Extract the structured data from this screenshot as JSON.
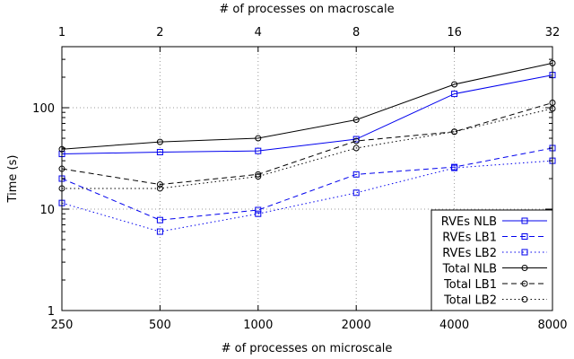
{
  "chart_data": {
    "type": "line",
    "xlabel": "# of processes on microscale",
    "x2label": "# of processes on macroscale",
    "ylabel": "Time (s)",
    "x_ticks": [
      "250",
      "500",
      "1000",
      "2000",
      "4000",
      "8000"
    ],
    "x2_ticks": [
      "1",
      "2",
      "4",
      "8",
      "16",
      "32"
    ],
    "y_scale": "log",
    "ylim": [
      1,
      400
    ],
    "y_ticks": [
      "1",
      "10",
      "100"
    ],
    "grid": true,
    "legend_position": "bottom-right",
    "series": [
      {
        "name": "RVEs NLB",
        "color": "#0000ee",
        "marker": "square",
        "dash": "solid",
        "values": [
          35,
          36.5,
          37.5,
          49,
          137,
          210
        ]
      },
      {
        "name": "RVEs LB1",
        "color": "#0000ee",
        "marker": "square",
        "dash": "dashed",
        "values": [
          20,
          7.8,
          9.8,
          22,
          26,
          40
        ]
      },
      {
        "name": "RVEs LB2",
        "color": "#0000ee",
        "marker": "square",
        "dash": "dotted",
        "values": [
          11.5,
          6,
          9,
          14.5,
          25.5,
          30
        ]
      },
      {
        "name": "Total NLB",
        "color": "#000000",
        "marker": "circle",
        "dash": "solid",
        "values": [
          39,
          46,
          50,
          76,
          170,
          275
        ]
      },
      {
        "name": "Total LB1",
        "color": "#000000",
        "marker": "circle",
        "dash": "dashed",
        "values": [
          25,
          17.5,
          22,
          47,
          58,
          112
        ]
      },
      {
        "name": "Total LB2",
        "color": "#000000",
        "marker": "circle",
        "dash": "dotted",
        "values": [
          16,
          16,
          21,
          40,
          58,
          98
        ]
      }
    ]
  }
}
